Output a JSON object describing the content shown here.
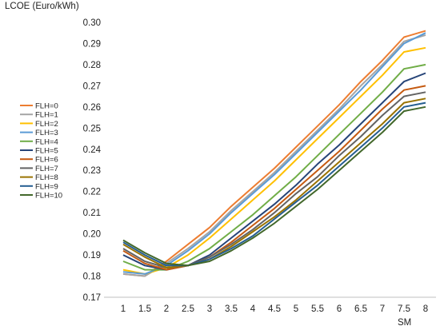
{
  "chart_data": {
    "type": "line",
    "title": "",
    "ylabel": "LCOE (Euro/kWh)",
    "xlabel": "SM",
    "ylim": [
      0.17,
      0.3
    ],
    "y_ticks": [
      "0.17",
      "0.18",
      "0.19",
      "0.20",
      "0.21",
      "0.22",
      "0.23",
      "0.24",
      "0.25",
      "0.26",
      "0.27",
      "0.28",
      "0.29",
      "0.30"
    ],
    "x": [
      1,
      1.5,
      2,
      2.5,
      3,
      3.5,
      4,
      4.5,
      5,
      5.5,
      6,
      6.5,
      7,
      7.5,
      8
    ],
    "x_tick_labels": [
      "1",
      "1.5",
      "2",
      "2.5",
      "3",
      "3.5",
      "4",
      "4.5",
      "5",
      "5.5",
      "6",
      "6.5",
      "7",
      "7.5",
      "8"
    ],
    "grid": false,
    "legend_position": "left",
    "series": [
      {
        "name": "FLH=0",
        "color": "#ED7D31",
        "values": [
          0.181,
          0.18,
          0.187,
          0.195,
          0.203,
          0.213,
          0.222,
          0.231,
          0.241,
          0.251,
          0.261,
          0.272,
          0.282,
          0.293,
          0.296
        ]
      },
      {
        "name": "FLH=1",
        "color": "#A5A5A5",
        "values": [
          0.181,
          0.18,
          0.186,
          0.193,
          0.201,
          0.211,
          0.22,
          0.229,
          0.239,
          0.249,
          0.259,
          0.27,
          0.28,
          0.291,
          0.294
        ]
      },
      {
        "name": "FLH=2",
        "color": "#FFC000",
        "values": [
          0.183,
          0.181,
          0.184,
          0.19,
          0.198,
          0.207,
          0.216,
          0.225,
          0.235,
          0.245,
          0.255,
          0.265,
          0.275,
          0.286,
          0.288
        ]
      },
      {
        "name": "FLH=3",
        "color": "#5B9BD5",
        "values": [
          0.182,
          0.181,
          0.185,
          0.192,
          0.2,
          0.21,
          0.219,
          0.228,
          0.238,
          0.248,
          0.258,
          0.268,
          0.279,
          0.29,
          0.295
        ]
      },
      {
        "name": "FLH=4",
        "color": "#70AD47",
        "values": [
          0.187,
          0.183,
          0.183,
          0.187,
          0.193,
          0.201,
          0.209,
          0.218,
          0.227,
          0.237,
          0.247,
          0.257,
          0.267,
          0.278,
          0.28
        ]
      },
      {
        "name": "FLH=5",
        "color": "#264478",
        "values": [
          0.19,
          0.185,
          0.183,
          0.185,
          0.19,
          0.198,
          0.206,
          0.214,
          0.223,
          0.233,
          0.242,
          0.252,
          0.262,
          0.272,
          0.276
        ]
      },
      {
        "name": "FLH=6",
        "color": "#C55A11",
        "values": [
          0.192,
          0.186,
          0.183,
          0.185,
          0.189,
          0.196,
          0.204,
          0.212,
          0.221,
          0.23,
          0.239,
          0.249,
          0.259,
          0.268,
          0.27
        ]
      },
      {
        "name": "FLH=7",
        "color": "#636363",
        "values": [
          0.193,
          0.187,
          0.184,
          0.185,
          0.189,
          0.195,
          0.202,
          0.21,
          0.219,
          0.227,
          0.237,
          0.246,
          0.256,
          0.265,
          0.267
        ]
      },
      {
        "name": "FLH=8",
        "color": "#997300",
        "values": [
          0.195,
          0.189,
          0.184,
          0.185,
          0.188,
          0.194,
          0.201,
          0.208,
          0.216,
          0.225,
          0.234,
          0.243,
          0.252,
          0.262,
          0.264
        ]
      },
      {
        "name": "FLH=9",
        "color": "#255E91",
        "values": [
          0.196,
          0.19,
          0.185,
          0.185,
          0.188,
          0.193,
          0.199,
          0.207,
          0.215,
          0.223,
          0.232,
          0.241,
          0.25,
          0.26,
          0.262
        ]
      },
      {
        "name": "FLH=10",
        "color": "#43682B",
        "values": [
          0.197,
          0.191,
          0.186,
          0.185,
          0.187,
          0.192,
          0.198,
          0.205,
          0.213,
          0.221,
          0.23,
          0.239,
          0.248,
          0.258,
          0.26
        ]
      }
    ]
  }
}
